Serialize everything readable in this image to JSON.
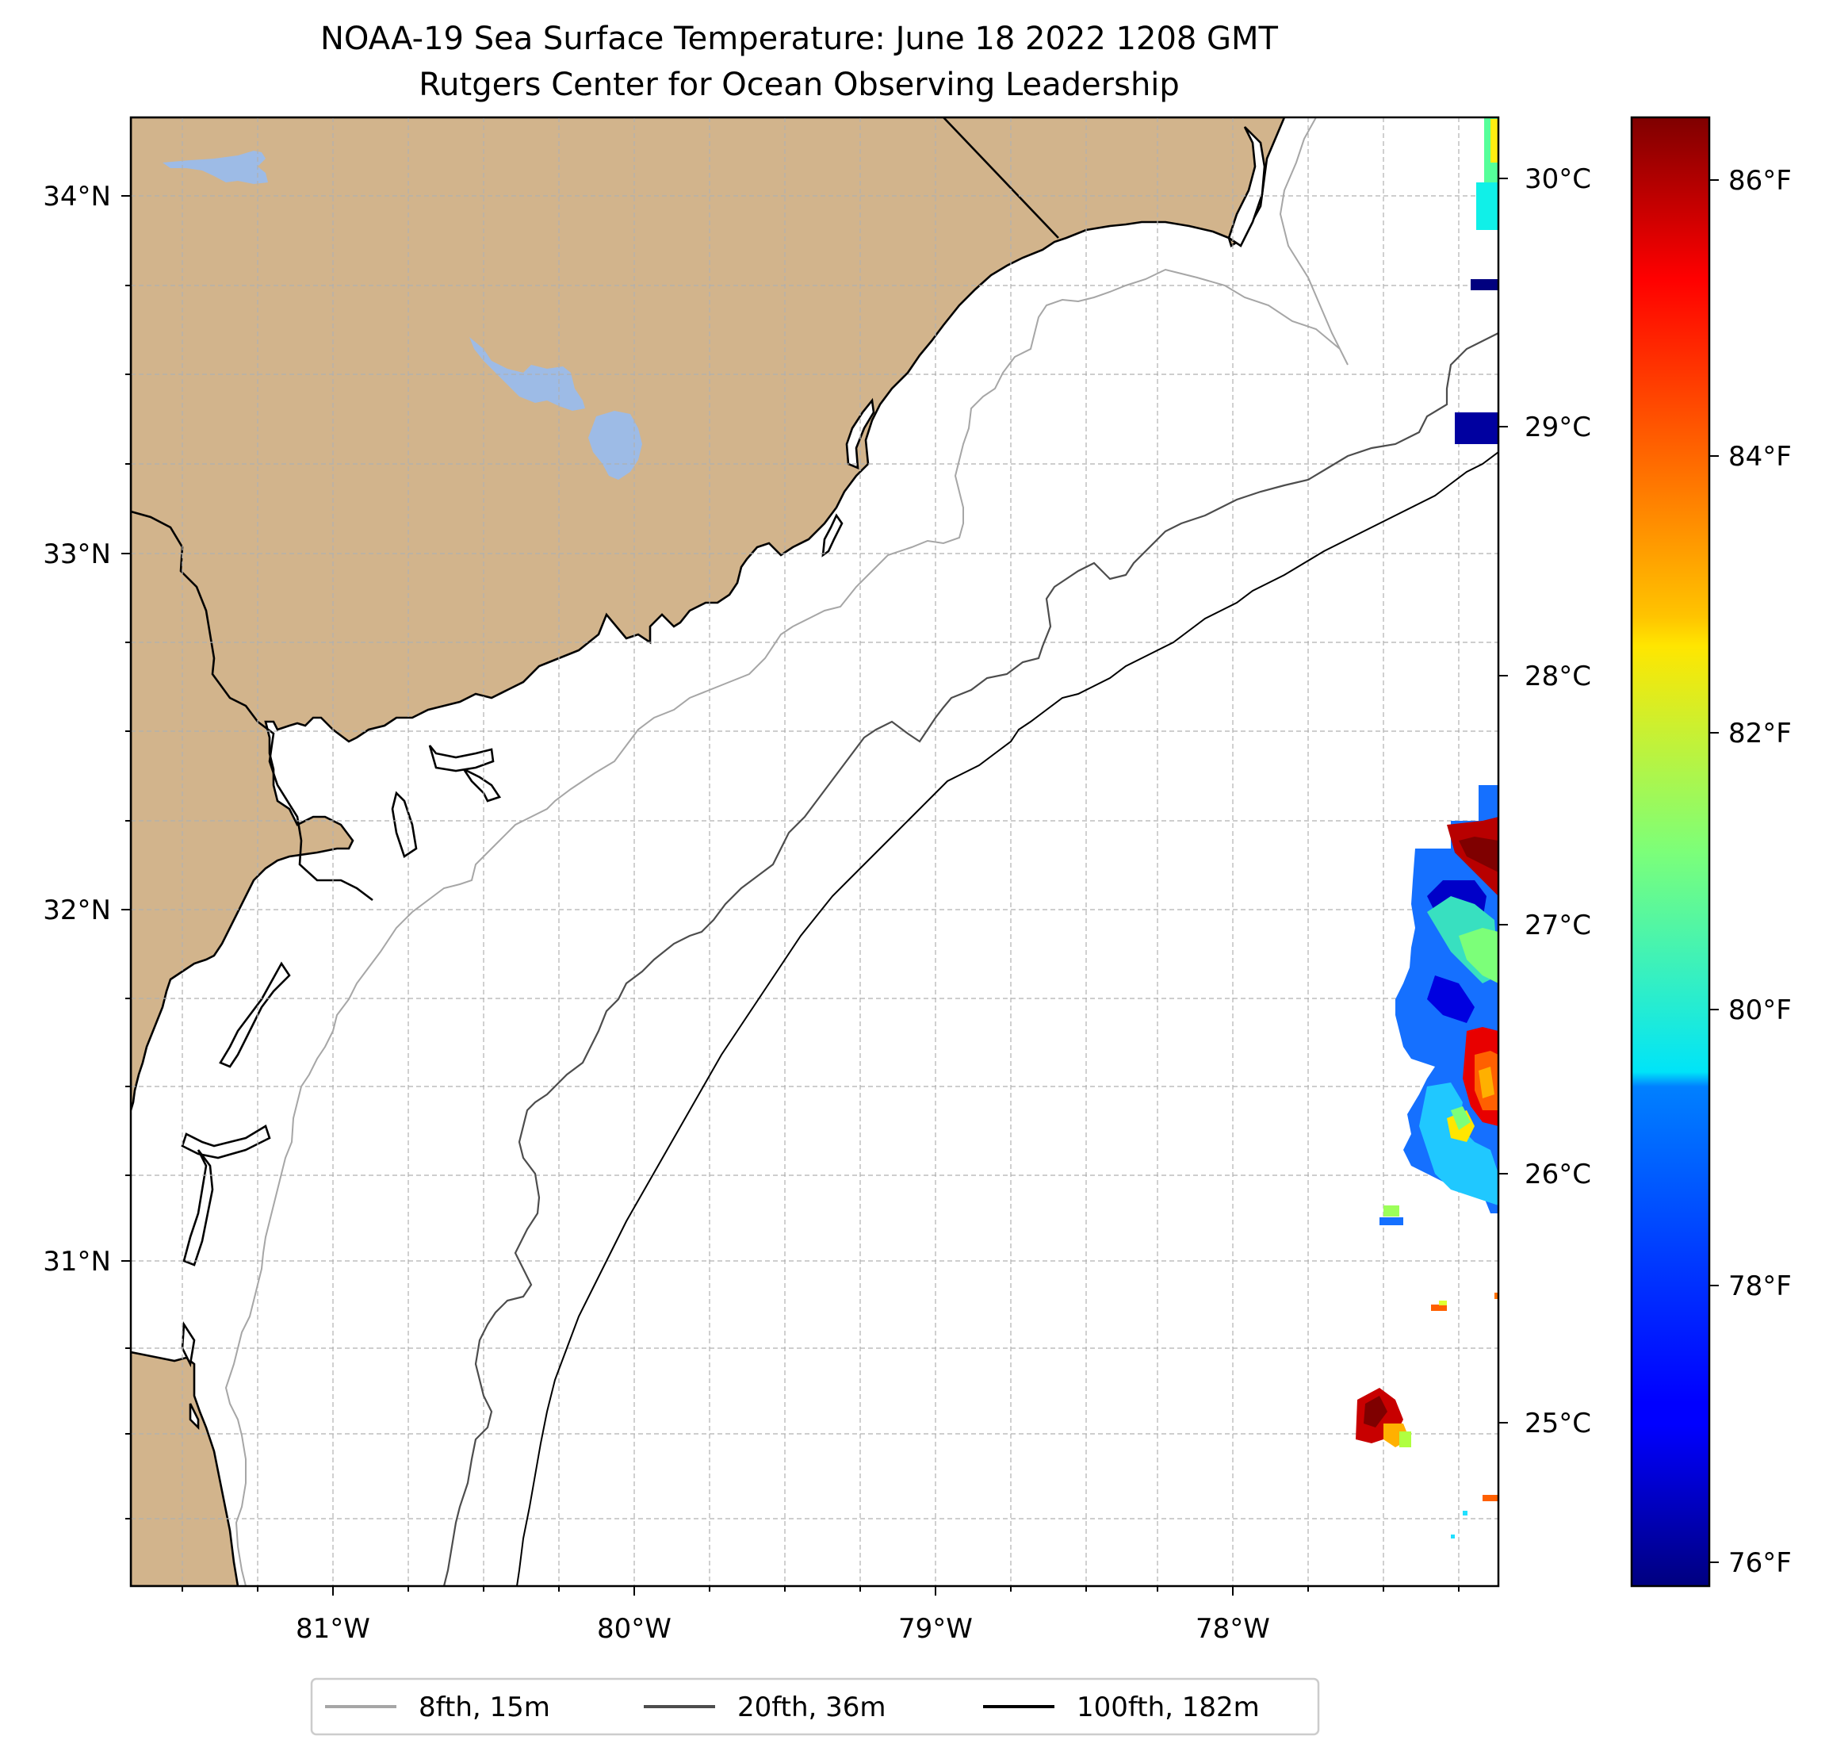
{
  "title": {
    "line1": "NOAA-19 Sea Surface Temperature: June 18 2022 1208 GMT",
    "line2": "Rutgers Center for Ocean Observing Leadership"
  },
  "map": {
    "lon_ticks": [
      "81°W",
      "80°W",
      "79°W",
      "78°W"
    ],
    "lat_ticks": [
      "34°N",
      "33°N",
      "32°N",
      "31°N"
    ],
    "celsius_ticks": [
      "30°C",
      "29°C",
      "28°C",
      "27°C",
      "26°C",
      "25°C"
    ],
    "land_color": "#d2b48c",
    "lake_color": "#9dbbe6"
  },
  "colorbar": {
    "ticks": [
      "86°F",
      "84°F",
      "82°F",
      "80°F",
      "78°F",
      "76°F"
    ],
    "colormap": "jet"
  },
  "legend": {
    "items": [
      {
        "label": "8fth, 15m",
        "color": "#a6a6a6"
      },
      {
        "label": "20fth, 36m",
        "color": "#4d4d4d"
      },
      {
        "label": "100fth, 182m",
        "color": "#000000"
      }
    ]
  }
}
